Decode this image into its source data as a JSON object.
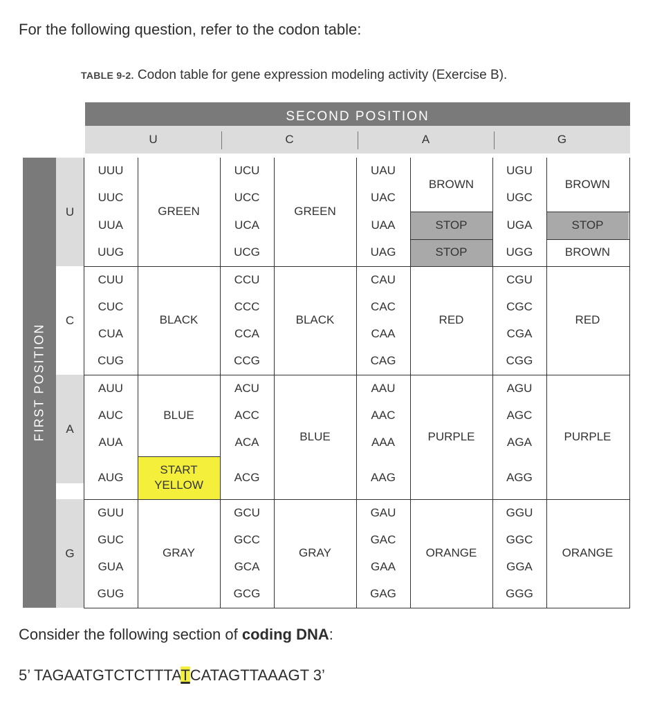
{
  "intro": "For the following question, refer to the codon table:",
  "caption": {
    "label": "TABLE 9-2.",
    "text": "Codon table for gene expression modeling activity (Exercise B)."
  },
  "second_position_label": "SECOND POSITION",
  "first_position_label": "FIRST POSITION",
  "second_letters": [
    "U",
    "C",
    "A",
    "G"
  ],
  "first_letters": [
    "U",
    "C",
    "A",
    "G"
  ],
  "colors": {
    "header_dark": "#7a7a7a",
    "header_light": "#dcdcdc",
    "stop_fill": "#a9a9a9",
    "start_fill": "#f3ef3a"
  },
  "codons": [
    [
      "UUU",
      "UUC",
      "UUA",
      "UUG",
      "CUU",
      "CUC",
      "CUA",
      "CUG",
      "AUU",
      "AUC",
      "AUA",
      "AUG",
      "GUU",
      "GUC",
      "GUA",
      "GUG"
    ],
    [
      "UCU",
      "UCC",
      "UCA",
      "UCG",
      "CCU",
      "CCC",
      "CCA",
      "CCG",
      "ACU",
      "ACC",
      "ACA",
      "ACG",
      "GCU",
      "GCC",
      "GCA",
      "GCG"
    ],
    [
      "UAU",
      "UAC",
      "UAA",
      "UAG",
      "CAU",
      "CAC",
      "CAA",
      "CAG",
      "AAU",
      "AAC",
      "AAA",
      "AAG",
      "GAU",
      "GAC",
      "GAA",
      "GAG"
    ],
    [
      "UGU",
      "UGC",
      "UGA",
      "UGG",
      "CGU",
      "CGC",
      "CGA",
      "CGG",
      "AGU",
      "AGC",
      "AGA",
      "AGG",
      "GGU",
      "GGC",
      "GGA",
      "GGG"
    ]
  ],
  "colors_by_group": {
    "u_col": {
      "U": "GREEN",
      "C": "BLACK",
      "A1": "BLUE",
      "A2_top": "START",
      "A2_bottom": "YELLOW",
      "G": "GRAY"
    },
    "c_col": {
      "U": "GREEN",
      "C": "BLACK",
      "A": "BLUE",
      "G": "GRAY"
    },
    "a_col": {
      "U1": "BROWN",
      "U2": "STOP",
      "U3": "STOP",
      "C": "RED",
      "A": "PURPLE",
      "G": "ORANGE"
    },
    "g_col": {
      "U1": "BROWN",
      "U2": "STOP",
      "U3": "BROWN",
      "C": "RED",
      "A": "PURPLE",
      "G": "ORANGE"
    }
  },
  "consider": {
    "before": "Consider the following section of ",
    "bold": "coding DNA",
    "after": ":"
  },
  "dna": {
    "prefix": "5’ TAGAATGTCTCTTTA",
    "highlight": "T",
    "suffix": "CATAGTTAAAGT 3’"
  }
}
